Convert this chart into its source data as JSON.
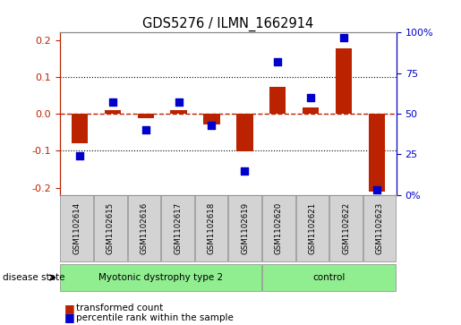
{
  "title": "GDS5276 / ILMN_1662914",
  "samples": [
    "GSM1102614",
    "GSM1102615",
    "GSM1102616",
    "GSM1102617",
    "GSM1102618",
    "GSM1102619",
    "GSM1102620",
    "GSM1102621",
    "GSM1102622",
    "GSM1102623"
  ],
  "red_values": [
    -0.08,
    0.01,
    -0.012,
    0.01,
    -0.03,
    -0.102,
    0.072,
    0.018,
    0.178,
    -0.21
  ],
  "blue_values": [
    24,
    57,
    40,
    57,
    43,
    15,
    82,
    60,
    97,
    3
  ],
  "ylim_left": [
    -0.22,
    0.22
  ],
  "ylim_right": [
    0,
    100
  ],
  "yticks_left": [
    -0.2,
    -0.1,
    0.0,
    0.1,
    0.2
  ],
  "yticks_right": [
    0,
    25,
    50,
    75,
    100
  ],
  "yticklabels_right": [
    "0%",
    "25",
    "50",
    "75",
    "100%"
  ],
  "dotted_lines": [
    0.1,
    -0.1
  ],
  "group1_count": 6,
  "group2_count": 4,
  "group1_label": "Myotonic dystrophy type 2",
  "group2_label": "control",
  "disease_state_label": "disease state",
  "legend_red": "transformed count",
  "legend_blue": "percentile rank within the sample",
  "bar_color": "#BB2200",
  "dot_color": "#0000CC",
  "group_color": "#90EE90",
  "sample_box_color": "#D3D3D3",
  "background_color": "#FFFFFF",
  "bar_width": 0.5,
  "dot_size": 40,
  "tick_color_left": "#BB2200",
  "tick_color_right": "#0000CC"
}
